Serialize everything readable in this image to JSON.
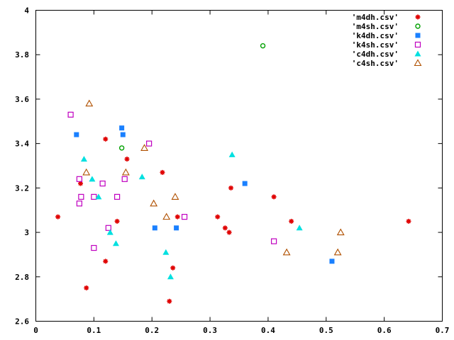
{
  "chart_data": {
    "type": "scatter",
    "xlim": [
      0,
      0.7
    ],
    "ylim": [
      2.6,
      4.0
    ],
    "x_ticks": [
      "0",
      "0.1",
      "0.2",
      "0.3",
      "0.4",
      "0.5",
      "0.6",
      "0.7"
    ],
    "y_ticks": [
      "2.6",
      "2.8",
      "3",
      "3.2",
      "3.4",
      "3.6",
      "3.8",
      "4"
    ],
    "grid": false,
    "legend_position": "top-right",
    "series": [
      {
        "name": "'m4dh.csv'",
        "marker": "asterisk",
        "color": "#e00000",
        "points": [
          [
            0.038,
            3.07
          ],
          [
            0.077,
            3.22
          ],
          [
            0.087,
            2.75
          ],
          [
            0.12,
            3.42
          ],
          [
            0.12,
            2.87
          ],
          [
            0.14,
            3.05
          ],
          [
            0.157,
            3.33
          ],
          [
            0.218,
            3.27
          ],
          [
            0.23,
            2.69
          ],
          [
            0.236,
            2.84
          ],
          [
            0.244,
            3.07
          ],
          [
            0.313,
            3.07
          ],
          [
            0.326,
            3.02
          ],
          [
            0.333,
            3.0
          ],
          [
            0.336,
            3.2
          ],
          [
            0.41,
            3.16
          ],
          [
            0.44,
            3.05
          ],
          [
            0.642,
            3.05
          ]
        ]
      },
      {
        "name": "'m4sh.csv'",
        "marker": "open-circle",
        "color": "#00a000",
        "points": [
          [
            0.148,
            3.38
          ],
          [
            0.391,
            3.84
          ]
        ]
      },
      {
        "name": "'k4dh.csv'",
        "marker": "filled-square",
        "color": "#1a80ff",
        "points": [
          [
            0.07,
            3.44
          ],
          [
            0.148,
            3.47
          ],
          [
            0.15,
            3.44
          ],
          [
            0.205,
            3.02
          ],
          [
            0.242,
            3.02
          ],
          [
            0.36,
            3.22
          ],
          [
            0.51,
            2.87
          ]
        ]
      },
      {
        "name": "'k4sh.csv'",
        "marker": "open-square",
        "color": "#c000c0",
        "points": [
          [
            0.06,
            3.53
          ],
          [
            0.075,
            3.24
          ],
          [
            0.075,
            3.13
          ],
          [
            0.078,
            3.16
          ],
          [
            0.1,
            3.16
          ],
          [
            0.1,
            2.93
          ],
          [
            0.115,
            3.22
          ],
          [
            0.125,
            3.02
          ],
          [
            0.14,
            3.16
          ],
          [
            0.153,
            3.24
          ],
          [
            0.195,
            3.4
          ],
          [
            0.256,
            3.07
          ],
          [
            0.41,
            2.96
          ]
        ]
      },
      {
        "name": "'c4dh.csv'",
        "marker": "filled-triangle",
        "color": "#00e0e0",
        "points": [
          [
            0.083,
            3.33
          ],
          [
            0.097,
            3.24
          ],
          [
            0.108,
            3.16
          ],
          [
            0.128,
            3.0
          ],
          [
            0.138,
            2.95
          ],
          [
            0.183,
            3.25
          ],
          [
            0.224,
            2.91
          ],
          [
            0.232,
            2.8
          ],
          [
            0.338,
            3.35
          ],
          [
            0.454,
            3.02
          ]
        ]
      },
      {
        "name": "'c4sh.csv'",
        "marker": "open-triangle",
        "color": "#b05000",
        "points": [
          [
            0.087,
            3.27
          ],
          [
            0.092,
            3.58
          ],
          [
            0.155,
            3.27
          ],
          [
            0.187,
            3.38
          ],
          [
            0.203,
            3.13
          ],
          [
            0.225,
            3.07
          ],
          [
            0.24,
            3.16
          ],
          [
            0.432,
            2.91
          ],
          [
            0.52,
            2.91
          ],
          [
            0.525,
            3.0
          ]
        ]
      }
    ]
  }
}
